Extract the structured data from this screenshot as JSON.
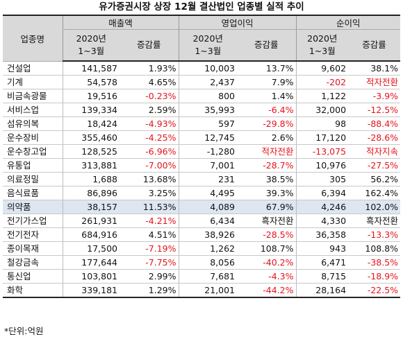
{
  "title": "유가증권시장 상장 12월 결산법인 업종별 실적 추이",
  "header": {
    "name_col": "업종명",
    "groups": [
      "매출액",
      "영업이익",
      "순이익"
    ],
    "period": [
      "2020년",
      "1~3월"
    ],
    "change": "증감률"
  },
  "rows": [
    [
      "건설업",
      "141,587",
      "1.93%",
      "10,003",
      "13.7%",
      "9,602",
      "38.1%"
    ],
    [
      "기계",
      "54,578",
      "4.65%",
      "2,437",
      "7.9%",
      "-202",
      "적자전환"
    ],
    [
      "비금속광물",
      "19,516",
      "-0.23%",
      "800",
      "1.4%",
      "1,122",
      "-3.9%"
    ],
    [
      "서비스업",
      "139,334",
      "2.59%",
      "35,993",
      "-6.4%",
      "32,000",
      "-12.5%"
    ],
    [
      "섬유의복",
      "18,424",
      "-4.93%",
      "597",
      "-29.8%",
      "98",
      "-88.4%"
    ],
    [
      "운수장비",
      "355,460",
      "-4.25%",
      "12,745",
      "2.6%",
      "17,120",
      "-28.6%"
    ],
    [
      "운수창고업",
      "128,525",
      "-6.96%",
      "-1,280",
      "적자전환",
      "-13,075",
      "적자지속"
    ],
    [
      "유통업",
      "313,881",
      "-7.00%",
      "7,001",
      "-28.7%",
      "10,976",
      "-27.5%"
    ],
    [
      "의료정밀",
      "1,688",
      "13.68%",
      "231",
      "38.5%",
      "305",
      "56.2%"
    ],
    [
      "음식료품",
      "86,896",
      "3.25%",
      "4,495",
      "39.3%",
      "6,394",
      "162.4%"
    ],
    [
      "의약품",
      "38,157",
      "11.53%",
      "4,089",
      "67.9%",
      "4,246",
      "102.0%"
    ],
    [
      "전기가스업",
      "261,931",
      "-4.21%",
      "6,434",
      "흑자전환",
      "4,330",
      "흑자전환"
    ],
    [
      "전기전자",
      "684,916",
      "4.51%",
      "38,926",
      "-28.5%",
      "36,358",
      "-13.3%"
    ],
    [
      "종이목재",
      "17,500",
      "-7.19%",
      "1,262",
      "108.7%",
      "943",
      "108.8%"
    ],
    [
      "철강금속",
      "177,644",
      "-7.75%",
      "8,056",
      "-40.2%",
      "6,471",
      "-38.5%"
    ],
    [
      "통신업",
      "103,801",
      "2.99%",
      "7,681",
      "-4.3%",
      "8,715",
      "-18.9%"
    ],
    [
      "화학",
      "339,181",
      "1.29%",
      "21,001",
      "-44.2%",
      "28,164",
      "-22.5%"
    ]
  ],
  "highlight_row": "의약품",
  "note": "*단위:억원",
  "colors": {
    "negative": "#e6121b",
    "header_bg": "#d9d9d9",
    "highlight_bg": "#dde6f1"
  }
}
